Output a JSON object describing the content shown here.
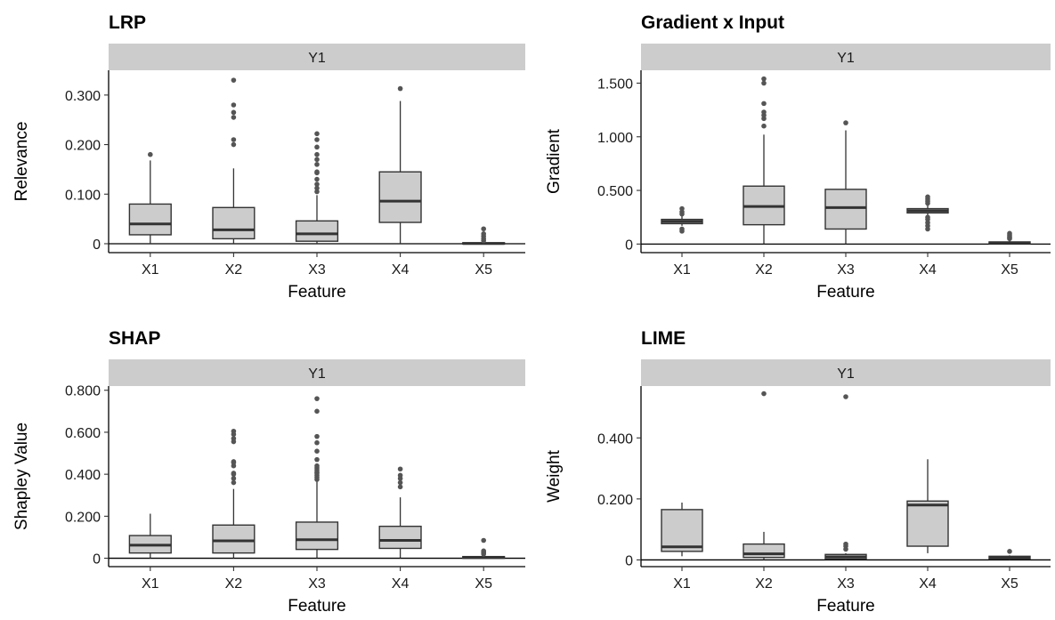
{
  "chart_data": [
    {
      "type": "box",
      "title": "LRP",
      "facet": "Y1",
      "xlabel": "Feature",
      "ylabel": "Relevance",
      "categories": [
        "X1",
        "X2",
        "X3",
        "X4",
        "X5"
      ],
      "ylim": [
        -0.018,
        0.35
      ],
      "yticks": [
        0,
        0.1,
        0.2,
        0.3
      ],
      "ytick_labels": [
        "0",
        "0.100",
        "0.200",
        "0.300"
      ],
      "boxes": [
        {
          "min": 0.0,
          "q1": 0.018,
          "median": 0.04,
          "q3": 0.08,
          "max": 0.168,
          "outliers": [
            0.18
          ]
        },
        {
          "min": 0.0,
          "q1": 0.01,
          "median": 0.028,
          "q3": 0.073,
          "max": 0.152,
          "outliers": [
            0.2,
            0.21,
            0.255,
            0.265,
            0.28,
            0.33
          ]
        },
        {
          "min": 0.0,
          "q1": 0.005,
          "median": 0.02,
          "q3": 0.046,
          "max": 0.098,
          "outliers": [
            0.105,
            0.112,
            0.12,
            0.13,
            0.143,
            0.145,
            0.16,
            0.17,
            0.18,
            0.195,
            0.21,
            0.222
          ]
        },
        {
          "min": 0.0,
          "q1": 0.043,
          "median": 0.086,
          "q3": 0.145,
          "max": 0.288,
          "outliers": [
            0.313
          ]
        },
        {
          "min": 0.0,
          "q1": 0.0,
          "median": 0.0005,
          "q3": 0.002,
          "max": 0.004,
          "outliers": [
            0.006,
            0.01,
            0.015,
            0.02,
            0.03
          ]
        }
      ]
    },
    {
      "type": "box",
      "title": "Gradient x Input",
      "facet": "Y1",
      "xlabel": "Feature",
      "ylabel": "Gradient",
      "categories": [
        "X1",
        "X2",
        "X3",
        "X4",
        "X5"
      ],
      "ylim": [
        -0.08,
        1.62
      ],
      "yticks": [
        0,
        0.5,
        1.0,
        1.5
      ],
      "ytick_labels": [
        "0",
        "0.500",
        "1.000",
        "1.500"
      ],
      "boxes": [
        {
          "min": 0.17,
          "q1": 0.19,
          "median": 0.21,
          "q3": 0.23,
          "max": 0.26,
          "outliers": [
            0.12,
            0.14,
            0.28,
            0.3,
            0.33
          ]
        },
        {
          "min": 0.0,
          "q1": 0.18,
          "median": 0.35,
          "q3": 0.54,
          "max": 1.02,
          "outliers": [
            1.1,
            1.17,
            1.2,
            1.23,
            1.31,
            1.5,
            1.54
          ]
        },
        {
          "min": 0.0,
          "q1": 0.14,
          "median": 0.34,
          "q3": 0.51,
          "max": 1.06,
          "outliers": [
            1.13
          ]
        },
        {
          "min": 0.27,
          "q1": 0.29,
          "median": 0.31,
          "q3": 0.33,
          "max": 0.36,
          "outliers": [
            0.14,
            0.17,
            0.2,
            0.23,
            0.25,
            0.38,
            0.4,
            0.42,
            0.44
          ]
        },
        {
          "min": 0.0,
          "q1": 0.005,
          "median": 0.01,
          "q3": 0.02,
          "max": 0.04,
          "outliers": [
            0.05,
            0.06,
            0.07,
            0.085,
            0.1
          ]
        }
      ]
    },
    {
      "type": "box",
      "title": "SHAP",
      "facet": "Y1",
      "xlabel": "Feature",
      "ylabel": "Shapley Value",
      "categories": [
        "X1",
        "X2",
        "X3",
        "X4",
        "X5"
      ],
      "ylim": [
        -0.04,
        0.82
      ],
      "yticks": [
        0,
        0.2,
        0.4,
        0.6,
        0.8
      ],
      "ytick_labels": [
        "0",
        "0.200",
        "0.400",
        "0.600",
        "0.800"
      ],
      "boxes": [
        {
          "min": 0.0,
          "q1": 0.025,
          "median": 0.062,
          "q3": 0.108,
          "max": 0.212,
          "outliers": []
        },
        {
          "min": 0.0,
          "q1": 0.025,
          "median": 0.083,
          "q3": 0.158,
          "max": 0.33,
          "outliers": [
            0.36,
            0.38,
            0.4,
            0.405,
            0.44,
            0.455,
            0.46,
            0.555,
            0.57,
            0.59,
            0.605
          ]
        },
        {
          "min": 0.0,
          "q1": 0.042,
          "median": 0.088,
          "q3": 0.172,
          "max": 0.365,
          "outliers": [
            0.375,
            0.385,
            0.395,
            0.405,
            0.41,
            0.42,
            0.43,
            0.44,
            0.47,
            0.51,
            0.55,
            0.58,
            0.7,
            0.76
          ]
        },
        {
          "min": 0.0,
          "q1": 0.047,
          "median": 0.085,
          "q3": 0.152,
          "max": 0.29,
          "outliers": [
            0.34,
            0.36,
            0.38,
            0.395,
            0.425
          ]
        },
        {
          "min": 0.0,
          "q1": 0.0,
          "median": 0.003,
          "q3": 0.008,
          "max": 0.015,
          "outliers": [
            0.02,
            0.025,
            0.03,
            0.035,
            0.085
          ]
        }
      ]
    },
    {
      "type": "box",
      "title": "LIME",
      "facet": "Y1",
      "xlabel": "Feature",
      "ylabel": "Weight",
      "categories": [
        "X1",
        "X2",
        "X3",
        "X4",
        "X5"
      ],
      "ylim": [
        -0.022,
        0.57
      ],
      "yticks": [
        0,
        0.2,
        0.4
      ],
      "ytick_labels": [
        "0",
        "0.200",
        "0.400"
      ],
      "boxes": [
        {
          "min": 0.012,
          "q1": 0.028,
          "median": 0.043,
          "q3": 0.165,
          "max": 0.188,
          "outliers": []
        },
        {
          "min": 0.0,
          "q1": 0.008,
          "median": 0.02,
          "q3": 0.052,
          "max": 0.092,
          "outliers": [
            0.545
          ]
        },
        {
          "min": 0.0,
          "q1": 0.003,
          "median": 0.01,
          "q3": 0.018,
          "max": 0.022,
          "outliers": [
            0.035,
            0.045,
            0.052,
            0.535
          ]
        },
        {
          "min": 0.022,
          "q1": 0.045,
          "median": 0.18,
          "q3": 0.193,
          "max": 0.33,
          "outliers": []
        },
        {
          "min": 0.0,
          "q1": 0.003,
          "median": 0.008,
          "q3": 0.012,
          "max": 0.015,
          "outliers": [
            0.028
          ]
        }
      ]
    }
  ]
}
